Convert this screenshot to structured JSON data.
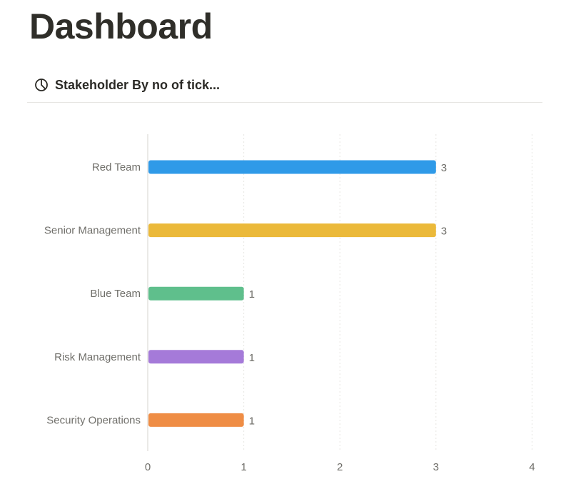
{
  "page": {
    "title": "Dashboard"
  },
  "view_tab": {
    "icon": "pie-chart-icon",
    "label": "Stakeholder By no of tick..."
  },
  "chart_data": {
    "type": "bar",
    "orientation": "horizontal",
    "categories": [
      "Red Team",
      "Senior Management",
      "Blue Team",
      "Risk Management",
      "Security Operations"
    ],
    "values": [
      3,
      3,
      1,
      1,
      1
    ],
    "colors": [
      "#2f9ae8",
      "#ebb93a",
      "#5fbf8c",
      "#a57ad9",
      "#ef8d45"
    ],
    "xlim": [
      0,
      4
    ],
    "xticks": [
      0,
      1,
      2,
      3,
      4
    ],
    "grid": true,
    "data_labels": true,
    "title": "",
    "xlabel": "",
    "ylabel": ""
  }
}
